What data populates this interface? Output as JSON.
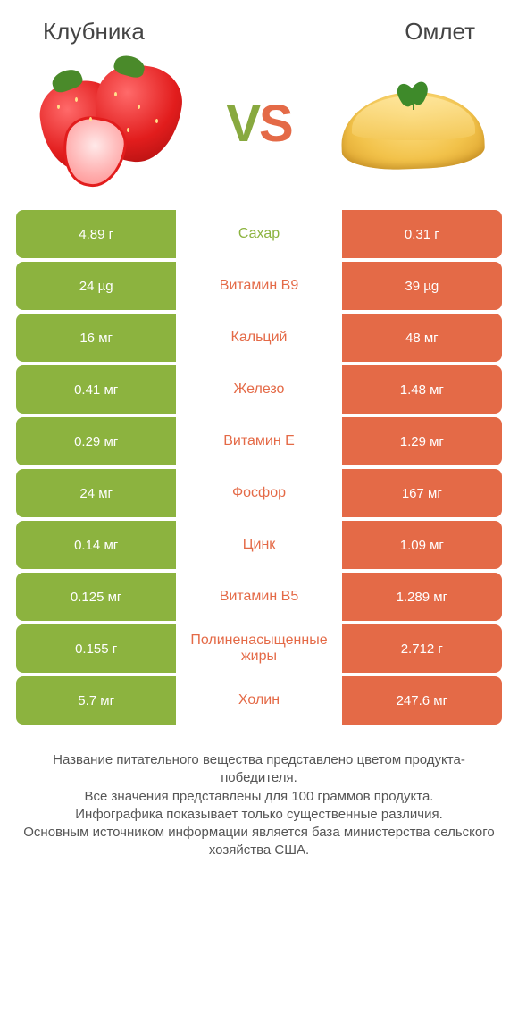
{
  "colors": {
    "left_color": "#8cb33f",
    "right_color": "#e46a47",
    "mid_text": "#555555",
    "cell_text": "#ffffff",
    "background": "#ffffff"
  },
  "left_product": "Клубника",
  "right_product": "Омлет",
  "vs_left_letter": "V",
  "vs_right_letter": "S",
  "rows": [
    {
      "label": "Сахар",
      "left": "4.89 г",
      "right": "0.31 г",
      "winner": "left"
    },
    {
      "label": "Витамин B9",
      "left": "24 µg",
      "right": "39 µg",
      "winner": "right"
    },
    {
      "label": "Кальций",
      "left": "16 мг",
      "right": "48 мг",
      "winner": "right"
    },
    {
      "label": "Железо",
      "left": "0.41 мг",
      "right": "1.48 мг",
      "winner": "right"
    },
    {
      "label": "Витамин E",
      "left": "0.29 мг",
      "right": "1.29 мг",
      "winner": "right"
    },
    {
      "label": "Фосфор",
      "left": "24 мг",
      "right": "167 мг",
      "winner": "right"
    },
    {
      "label": "Цинк",
      "left": "0.14 мг",
      "right": "1.09 мг",
      "winner": "right"
    },
    {
      "label": "Витамин B5",
      "left": "0.125 мг",
      "right": "1.289 мг",
      "winner": "right"
    },
    {
      "label": "Полиненасыщенные жиры",
      "left": "0.155 г",
      "right": "2.712 г",
      "winner": "right"
    },
    {
      "label": "Холин",
      "left": "5.7 мг",
      "right": "247.6 мг",
      "winner": "right"
    }
  ],
  "footnote": "Название питательного вещества представлено цветом продукта-победителя.\nВсе значения представлены для 100 граммов продукта.\nИнфографика показывает только существенные различия.\nОсновным источником информации является база министерства сельского хозяйства США."
}
